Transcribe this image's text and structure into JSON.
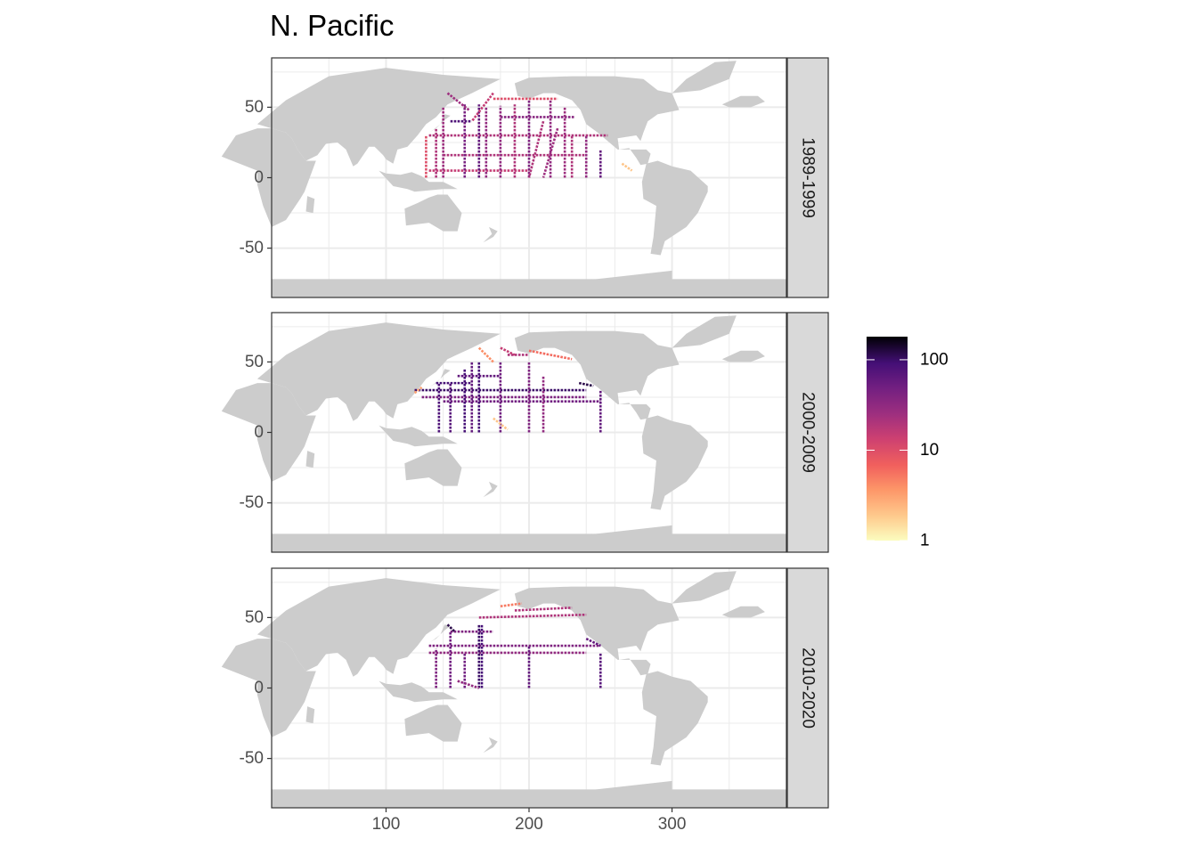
{
  "chart_data": {
    "type": "heatmap",
    "title": "N. Pacific",
    "xlabel": "",
    "ylabel": "",
    "xlim": [
      20,
      380
    ],
    "ylim": [
      -85,
      85
    ],
    "x_ticks": [
      "100",
      "200",
      "300"
    ],
    "x_tick_values": [
      100,
      200,
      300
    ],
    "y_ticks": [
      "50",
      "0",
      "-50"
    ],
    "y_tick_values": [
      50,
      0,
      -50
    ],
    "grid": true,
    "land_color": "#cccccc",
    "colorscale": "magma (reversed), log scale",
    "colorbar": {
      "ticks": [
        "100",
        "10",
        "1"
      ],
      "tick_values": [
        100,
        10,
        1
      ],
      "range": [
        1,
        180
      ],
      "log": true,
      "placement": "right"
    },
    "facets": [
      {
        "label": "1989-1999",
        "tracks": [
          {
            "x": [
              130,
              255
            ],
            "y": [
              30,
              30
            ],
            "v": 20
          },
          {
            "x": [
              180,
              232
            ],
            "y": [
              43,
              43
            ],
            "v": 35
          },
          {
            "x": [
              140,
              240
            ],
            "y": [
              16,
              16
            ],
            "v": 20
          },
          {
            "x": [
              130,
              200
            ],
            "y": [
              5,
              5
            ],
            "v": 15
          },
          {
            "x": [
              140,
              140
            ],
            "y": [
              0,
              50
            ],
            "v": 25
          },
          {
            "x": [
              155,
              155
            ],
            "y": [
              0,
              52
            ],
            "v": 45
          },
          {
            "x": [
              165,
              165
            ],
            "y": [
              0,
              52
            ],
            "v": 60
          },
          {
            "x": [
              170,
              170
            ],
            "y": [
              0,
              50
            ],
            "v": 30
          },
          {
            "x": [
              180,
              180
            ],
            "y": [
              0,
              51
            ],
            "v": 30
          },
          {
            "x": [
              190,
              190
            ],
            "y": [
              0,
              52
            ],
            "v": 20
          },
          {
            "x": [
              200,
              200
            ],
            "y": [
              0,
              55
            ],
            "v": 40
          },
          {
            "x": [
              215,
              215
            ],
            "y": [
              0,
              55
            ],
            "v": 30
          },
          {
            "x": [
              225,
              225
            ],
            "y": [
              0,
              50
            ],
            "v": 25
          },
          {
            "x": [
              230,
              230
            ],
            "y": [
              0,
              30
            ],
            "v": 20
          },
          {
            "x": [
              240,
              240
            ],
            "y": [
              0,
              30
            ],
            "v": 30
          },
          {
            "x": [
              250,
              250
            ],
            "y": [
              0,
              20
            ],
            "v": 60
          },
          {
            "x": [
              135,
              135
            ],
            "y": [
              0,
              35
            ],
            "v": 20
          },
          {
            "x": [
              128,
              128
            ],
            "y": [
              0,
              30
            ],
            "v": 10
          },
          {
            "x": [
              175,
              220
            ],
            "y": [
              56,
              56
            ],
            "v": 10
          },
          {
            "x": [
              145,
              160
            ],
            "y": [
              40,
              40
            ],
            "v": 80
          },
          {
            "x": [
              143,
              158
            ],
            "y": [
              60,
              48
            ],
            "v": 25
          },
          {
            "x": [
              175,
              160
            ],
            "y": [
              60,
              40
            ],
            "v": 15
          },
          {
            "x": [
              210,
              200
            ],
            "y": [
              40,
              0
            ],
            "v": 20
          },
          {
            "x": [
              220,
              210
            ],
            "y": [
              35,
              0
            ],
            "v": 25
          },
          {
            "x": [
              265,
              272
            ],
            "y": [
              10,
              5
            ],
            "v": 2
          }
        ]
      },
      {
        "label": "2000-2009",
        "tracks": [
          {
            "x": [
              120,
              240
            ],
            "y": [
              30,
              30
            ],
            "v": 100
          },
          {
            "x": [
              125,
              240
            ],
            "y": [
              25,
              25
            ],
            "v": 40
          },
          {
            "x": [
              140,
              250
            ],
            "y": [
              22,
              22
            ],
            "v": 50
          },
          {
            "x": [
              135,
              160
            ],
            "y": [
              35,
              35
            ],
            "v": 90
          },
          {
            "x": [
              150,
              180
            ],
            "y": [
              40,
              40
            ],
            "v": 60
          },
          {
            "x": [
              137,
              137
            ],
            "y": [
              0,
              35
            ],
            "v": 80
          },
          {
            "x": [
              145,
              145
            ],
            "y": [
              0,
              35
            ],
            "v": 70
          },
          {
            "x": [
              155,
              155
            ],
            "y": [
              0,
              45
            ],
            "v": 90
          },
          {
            "x": [
              160,
              160
            ],
            "y": [
              0,
              50
            ],
            "v": 60
          },
          {
            "x": [
              165,
              165
            ],
            "y": [
              0,
              50
            ],
            "v": 90
          },
          {
            "x": [
              180,
              180
            ],
            "y": [
              0,
              50
            ],
            "v": 50
          },
          {
            "x": [
              200,
              200
            ],
            "y": [
              0,
              50
            ],
            "v": 40
          },
          {
            "x": [
              210,
              210
            ],
            "y": [
              0,
              40
            ],
            "v": 30
          },
          {
            "x": [
              250,
              250
            ],
            "y": [
              0,
              30
            ],
            "v": 60
          },
          {
            "x": [
              185,
              200
            ],
            "y": [
              55,
              55
            ],
            "v": 20
          },
          {
            "x": [
              200,
              230
            ],
            "y": [
              58,
              52
            ],
            "v": 6
          },
          {
            "x": [
              165,
              175
            ],
            "y": [
              60,
              50
            ],
            "v": 4
          },
          {
            "x": [
              180,
              190
            ],
            "y": [
              60,
              55
            ],
            "v": 15
          },
          {
            "x": [
              120,
              125
            ],
            "y": [
              28,
              32
            ],
            "v": 3
          },
          {
            "x": [
              175,
              185
            ],
            "y": [
              10,
              2
            ],
            "v": 2
          },
          {
            "x": [
              235,
              245
            ],
            "y": [
              35,
              33
            ],
            "v": 120
          }
        ]
      },
      {
        "label": "2010-2020",
        "tracks": [
          {
            "x": [
              130,
              250
            ],
            "y": [
              30,
              30
            ],
            "v": 40
          },
          {
            "x": [
              130,
              240
            ],
            "y": [
              25,
              25
            ],
            "v": 30
          },
          {
            "x": [
              145,
              175
            ],
            "y": [
              40,
              40
            ],
            "v": 40
          },
          {
            "x": [
              165,
              240
            ],
            "y": [
              50,
              52
            ],
            "v": 20
          },
          {
            "x": [
              190,
              230
            ],
            "y": [
              55,
              57
            ],
            "v": 20
          },
          {
            "x": [
              180,
              195
            ],
            "y": [
              58,
              60
            ],
            "v": 5
          },
          {
            "x": [
              135,
              135
            ],
            "y": [
              0,
              28
            ],
            "v": 40
          },
          {
            "x": [
              145,
              145
            ],
            "y": [
              0,
              40
            ],
            "v": 50
          },
          {
            "x": [
              155,
              155
            ],
            "y": [
              0,
              25
            ],
            "v": 50
          },
          {
            "x": [
              165,
              165
            ],
            "y": [
              0,
              45
            ],
            "v": 100
          },
          {
            "x": [
              167,
              167
            ],
            "y": [
              0,
              45
            ],
            "v": 90
          },
          {
            "x": [
              200,
              200
            ],
            "y": [
              0,
              30
            ],
            "v": 60
          },
          {
            "x": [
              250,
              250
            ],
            "y": [
              0,
              25
            ],
            "v": 70
          },
          {
            "x": [
              240,
              250
            ],
            "y": [
              35,
              30
            ],
            "v": 60
          },
          {
            "x": [
              150,
              165
            ],
            "y": [
              5,
              0
            ],
            "v": 30
          },
          {
            "x": [
              143,
              148
            ],
            "y": [
              45,
              40
            ],
            "v": 120
          }
        ]
      }
    ]
  }
}
